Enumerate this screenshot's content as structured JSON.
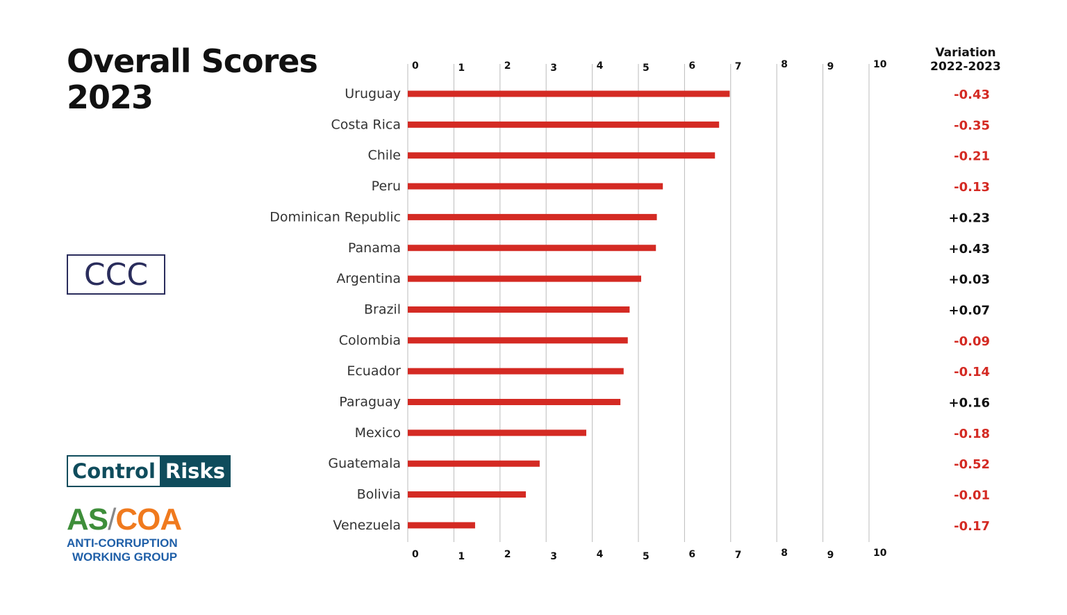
{
  "title_line1": "Overall Scores",
  "title_line2": "2023",
  "ccc_label": "CCC",
  "logos": {
    "control_risks_a": "Control",
    "control_risks_b": "Risks",
    "ascoa_as": "AS",
    "ascoa_slash": "/",
    "ascoa_coa": "COA",
    "ascoa_line1": "ANTI-CORRUPTION",
    "ascoa_line2": "WORKING GROUP"
  },
  "variation_header_line1": "Variation",
  "variation_header_line2": "2022-2023",
  "colors": {
    "bar": "#d42a23",
    "negative": "#d42a23",
    "positive": "#111111",
    "grid": "#bbbbbb"
  },
  "chart_data": {
    "type": "bar",
    "orientation": "horizontal",
    "categories": [
      "Uruguay",
      "Costa Rica",
      "Chile",
      "Peru",
      "Dominican Republic",
      "Panama",
      "Argentina",
      "Brazil",
      "Colombia",
      "Ecuador",
      "Paraguay",
      "Mexico",
      "Guatemala",
      "Bolivia",
      "Venezuela"
    ],
    "values": [
      6.98,
      6.75,
      6.66,
      5.53,
      5.4,
      5.38,
      5.06,
      4.81,
      4.77,
      4.68,
      4.61,
      3.87,
      2.86,
      2.56,
      1.46
    ],
    "variation": [
      "-0.43",
      "-0.35",
      "-0.21",
      "-0.13",
      "+0.23",
      "+0.43",
      "+0.03",
      "+0.07",
      "-0.09",
      "-0.14",
      "+0.16",
      "-0.18",
      "-0.52",
      "-0.01",
      "-0.17"
    ],
    "xlim": [
      0,
      10
    ],
    "xticks": [
      "0",
      "1",
      "2",
      "3",
      "4",
      "5",
      "6",
      "7",
      "8",
      "9",
      "10"
    ],
    "grid": true,
    "tick_labels_top_and_bottom": true
  }
}
